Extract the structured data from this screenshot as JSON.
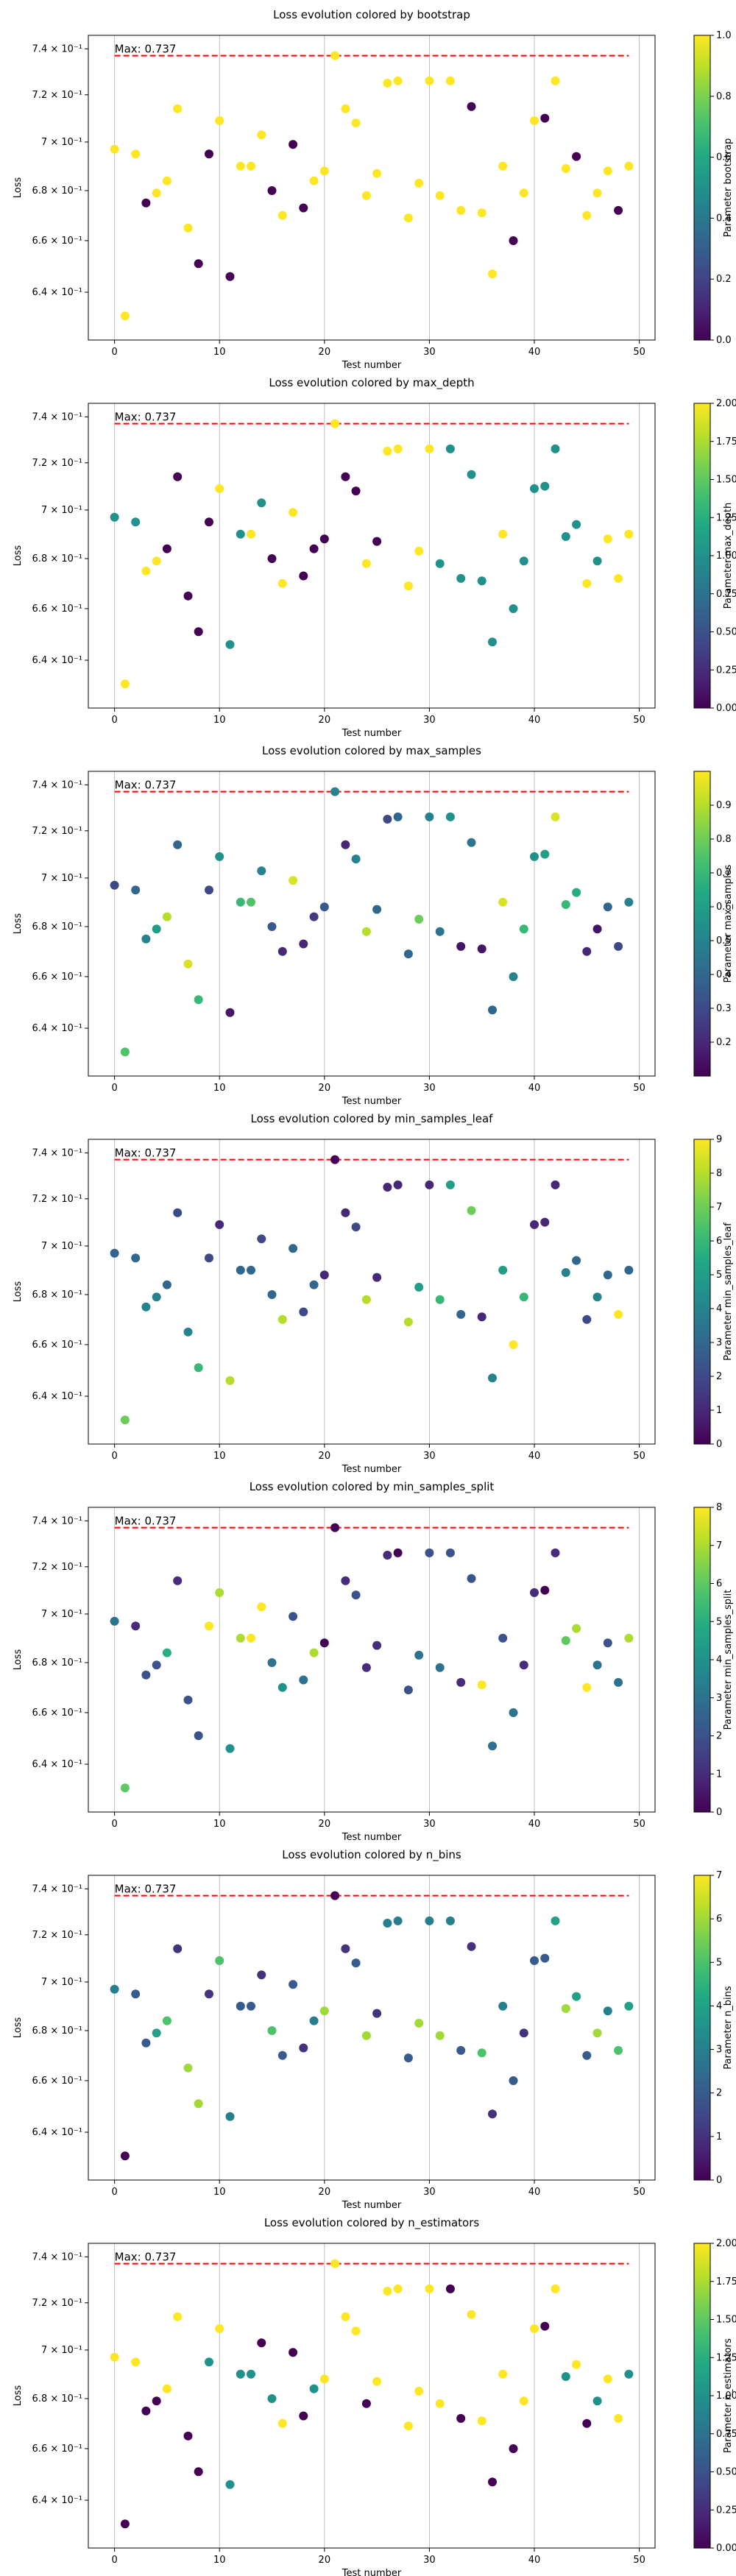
{
  "loss_values": [
    0.697,
    0.631,
    0.695,
    0.675,
    0.679,
    0.684,
    0.714,
    0.665,
    0.651,
    0.695,
    0.709,
    0.646,
    0.69,
    0.69,
    0.703,
    0.68,
    0.67,
    0.699,
    0.673,
    0.684,
    0.688,
    0.737,
    0.714,
    0.708,
    0.678,
    0.687,
    0.725,
    0.726,
    0.669,
    0.683,
    0.726,
    0.678,
    0.726,
    0.672,
    0.715,
    0.671,
    0.647,
    0.69,
    0.66,
    0.679,
    0.709,
    0.71,
    0.726,
    0.689,
    0.694,
    0.67,
    0.679,
    0.688,
    0.672,
    0.69
  ],
  "annotation": "Max: 0.737",
  "max_value": 0.737,
  "colormap": "viridis",
  "chart_data": [
    {
      "type": "scatter",
      "title": "Loss evolution colored by bootstrap",
      "xlabel": "Test number",
      "ylabel": "Loss",
      "colorbar_label": "Parameter bootstrap",
      "xlim": [
        -2.5,
        51.5
      ],
      "ylim": [
        0.622,
        0.746
      ],
      "log_y": true,
      "x_ticks": [
        0,
        10,
        20,
        30,
        40,
        50
      ],
      "y_ticks": [
        {
          "value": 0.64,
          "label": "6.4 × 10⁻¹"
        },
        {
          "value": 0.66,
          "label": "6.6 × 10⁻¹"
        },
        {
          "value": 0.68,
          "label": "6.8 × 10⁻¹"
        },
        {
          "value": 0.7,
          "label": "7 × 10⁻¹"
        },
        {
          "value": 0.72,
          "label": "7.2 × 10⁻¹"
        },
        {
          "value": 0.74,
          "label": "7.4 × 10⁻¹"
        }
      ],
      "color_range": [
        0.0,
        1.0
      ],
      "colorbar_ticks": [
        "0.0",
        "0.2",
        "0.4",
        "0.6",
        "0.8",
        "1.0"
      ],
      "colorbar_tick_values": [
        0.0,
        0.2,
        0.4,
        0.6,
        0.8,
        1.0
      ],
      "grid": "vertical",
      "param_values": [
        1,
        1,
        1,
        0,
        1,
        1,
        1,
        1,
        0,
        0,
        1,
        0,
        1,
        1,
        1,
        0,
        1,
        0,
        0,
        1,
        1,
        1,
        1,
        1,
        1,
        1,
        1,
        1,
        1,
        1,
        1,
        1,
        1,
        1,
        0,
        1,
        1,
        1,
        0,
        1,
        1,
        0,
        1,
        1,
        0,
        1,
        1,
        1,
        0,
        1
      ]
    },
    {
      "type": "scatter",
      "title": "Loss evolution colored by max_depth",
      "xlabel": "Test number",
      "ylabel": "Loss",
      "colorbar_label": "Parameter max_depth",
      "xlim": [
        -2.5,
        51.5
      ],
      "ylim": [
        0.622,
        0.746
      ],
      "log_y": true,
      "x_ticks": [
        0,
        10,
        20,
        30,
        40,
        50
      ],
      "y_ticks": [
        {
          "value": 0.64,
          "label": "6.4 × 10⁻¹"
        },
        {
          "value": 0.66,
          "label": "6.6 × 10⁻¹"
        },
        {
          "value": 0.68,
          "label": "6.8 × 10⁻¹"
        },
        {
          "value": 0.7,
          "label": "7 × 10⁻¹"
        },
        {
          "value": 0.72,
          "label": "7.2 × 10⁻¹"
        },
        {
          "value": 0.74,
          "label": "7.4 × 10⁻¹"
        }
      ],
      "color_range": [
        0.0,
        2.0
      ],
      "colorbar_ticks": [
        "0.00",
        "0.25",
        "0.50",
        "0.75",
        "1.00",
        "1.25",
        "1.50",
        "1.75",
        "2.00"
      ],
      "colorbar_tick_values": [
        0.0,
        0.25,
        0.5,
        0.75,
        1.0,
        1.25,
        1.5,
        1.75,
        2.0
      ],
      "grid": "vertical",
      "param_values": [
        1,
        2,
        1,
        2,
        2,
        0,
        0,
        0,
        0,
        0,
        2,
        1,
        1,
        2,
        1,
        0,
        2,
        2,
        0,
        0,
        0,
        2,
        0,
        0,
        2,
        0,
        2,
        2,
        2,
        2,
        2,
        1,
        1,
        1,
        1,
        1,
        1,
        2,
        1,
        1,
        1,
        1,
        1,
        1,
        1,
        2,
        1,
        2,
        2,
        2
      ]
    },
    {
      "type": "scatter",
      "title": "Loss evolution colored by max_samples",
      "xlabel": "Test number",
      "ylabel": "Loss",
      "colorbar_label": "Parameter max_samples",
      "xlim": [
        -2.5,
        51.5
      ],
      "ylim": [
        0.622,
        0.746
      ],
      "log_y": true,
      "x_ticks": [
        0,
        10,
        20,
        30,
        40,
        50
      ],
      "y_ticks": [
        {
          "value": 0.64,
          "label": "6.4 × 10⁻¹"
        },
        {
          "value": 0.66,
          "label": "6.6 × 10⁻¹"
        },
        {
          "value": 0.68,
          "label": "6.8 × 10⁻¹"
        },
        {
          "value": 0.7,
          "label": "7 × 10⁻¹"
        },
        {
          "value": 0.72,
          "label": "7.2 × 10⁻¹"
        },
        {
          "value": 0.74,
          "label": "7.4 × 10⁻¹"
        }
      ],
      "color_range": [
        0.1,
        1.0
      ],
      "colorbar_ticks": [
        "0.2",
        "0.3",
        "0.4",
        "0.5",
        "0.6",
        "0.7",
        "0.8",
        "0.9"
      ],
      "colorbar_tick_values": [
        0.2,
        0.3,
        0.4,
        0.5,
        0.6,
        0.7,
        0.8,
        0.9
      ],
      "grid": "vertical",
      "param_values": [
        0.3,
        0.75,
        0.4,
        0.5,
        0.6,
        0.9,
        0.4,
        0.95,
        0.7,
        0.3,
        0.55,
        0.15,
        0.7,
        0.75,
        0.5,
        0.35,
        0.2,
        0.95,
        0.2,
        0.25,
        0.35,
        0.5,
        0.2,
        0.5,
        0.9,
        0.4,
        0.3,
        0.4,
        0.4,
        0.8,
        0.5,
        0.45,
        0.55,
        0.15,
        0.45,
        0.15,
        0.4,
        0.95,
        0.5,
        0.7,
        0.55,
        0.6,
        0.95,
        0.7,
        0.65,
        0.2,
        0.15,
        0.4,
        0.3,
        0.5
      ]
    },
    {
      "type": "scatter",
      "title": "Loss evolution colored by min_samples_leaf",
      "xlabel": "Test number",
      "ylabel": "Loss",
      "colorbar_label": "Parameter min_samples_leaf",
      "xlim": [
        -2.5,
        51.5
      ],
      "ylim": [
        0.622,
        0.746
      ],
      "log_y": true,
      "x_ticks": [
        0,
        10,
        20,
        30,
        40,
        50
      ],
      "y_ticks": [
        {
          "value": 0.64,
          "label": "6.4 × 10⁻¹"
        },
        {
          "value": 0.66,
          "label": "6.6 × 10⁻¹"
        },
        {
          "value": 0.68,
          "label": "6.8 × 10⁻¹"
        },
        {
          "value": 0.7,
          "label": "7 × 10⁻¹"
        },
        {
          "value": 0.72,
          "label": "7.2 × 10⁻¹"
        },
        {
          "value": 0.74,
          "label": "7.4 × 10⁻¹"
        }
      ],
      "color_range": [
        0,
        9
      ],
      "colorbar_ticks": [
        "0",
        "1",
        "2",
        "3",
        "4",
        "5",
        "6",
        "7",
        "8",
        "9"
      ],
      "colorbar_tick_values": [
        0,
        1,
        2,
        3,
        4,
        5,
        6,
        7,
        8,
        9
      ],
      "grid": "vertical",
      "param_values": [
        3,
        7,
        3,
        4,
        4,
        3,
        2,
        4,
        6,
        2,
        1,
        8,
        3,
        3,
        2,
        3,
        8,
        3,
        2,
        3,
        1,
        0,
        1,
        2,
        8,
        1,
        1,
        1,
        8,
        5,
        1,
        6,
        5,
        3,
        7,
        1,
        4,
        5,
        9,
        6,
        1,
        1,
        1,
        4,
        3,
        2,
        4,
        3,
        9,
        3
      ]
    },
    {
      "type": "scatter",
      "title": "Loss evolution colored by min_samples_split",
      "xlabel": "Test number",
      "ylabel": "Loss",
      "colorbar_label": "Parameter min_samples_split",
      "xlim": [
        -2.5,
        51.5
      ],
      "ylim": [
        0.622,
        0.746
      ],
      "log_y": true,
      "x_ticks": [
        0,
        10,
        20,
        30,
        40,
        50
      ],
      "y_ticks": [
        {
          "value": 0.64,
          "label": "6.4 × 10⁻¹"
        },
        {
          "value": 0.66,
          "label": "6.6 × 10⁻¹"
        },
        {
          "value": 0.68,
          "label": "6.8 × 10⁻¹"
        },
        {
          "value": 0.7,
          "label": "7 × 10⁻¹"
        },
        {
          "value": 0.72,
          "label": "7.2 × 10⁻¹"
        },
        {
          "value": 0.74,
          "label": "7.4 × 10⁻¹"
        }
      ],
      "color_range": [
        0,
        8
      ],
      "colorbar_ticks": [
        "0",
        "1",
        "2",
        "3",
        "4",
        "5",
        "6",
        "7",
        "8"
      ],
      "colorbar_tick_values": [
        0,
        1,
        2,
        3,
        4,
        5,
        6,
        7,
        8
      ],
      "grid": "vertical",
      "param_values": [
        3,
        6,
        1,
        2,
        2,
        5,
        1,
        2,
        2,
        8,
        7,
        4,
        7,
        8,
        8,
        3,
        4,
        2,
        3,
        7,
        0,
        0,
        1,
        2,
        1,
        1,
        1,
        0,
        2,
        3,
        2,
        3,
        2,
        1,
        2,
        8,
        3,
        2,
        3,
        1,
        1,
        0,
        1,
        6,
        7,
        8,
        3,
        2,
        3,
        7
      ]
    },
    {
      "type": "scatter",
      "title": "Loss evolution colored by n_bins",
      "xlabel": "Test number",
      "ylabel": "Loss",
      "colorbar_label": "Parameter n_bins",
      "xlim": [
        -2.5,
        51.5
      ],
      "ylim": [
        0.622,
        0.746
      ],
      "log_y": true,
      "x_ticks": [
        0,
        10,
        20,
        30,
        40,
        50
      ],
      "y_ticks": [
        {
          "value": 0.64,
          "label": "6.4 × 10⁻¹"
        },
        {
          "value": 0.66,
          "label": "6.6 × 10⁻¹"
        },
        {
          "value": 0.68,
          "label": "6.8 × 10⁻¹"
        },
        {
          "value": 0.7,
          "label": "7 × 10⁻¹"
        },
        {
          "value": 0.72,
          "label": "7.2 × 10⁻¹"
        },
        {
          "value": 0.74,
          "label": "7.4 × 10⁻¹"
        }
      ],
      "color_range": [
        0,
        7
      ],
      "colorbar_ticks": [
        "0",
        "1",
        "2",
        "3",
        "4",
        "5",
        "6",
        "7"
      ],
      "colorbar_tick_values": [
        0,
        1,
        2,
        3,
        4,
        5,
        6,
        7
      ],
      "grid": "vertical",
      "param_values": [
        3,
        0,
        2,
        2,
        4,
        5,
        1,
        6,
        6,
        1,
        5,
        3,
        2,
        2,
        1,
        5,
        2,
        2,
        1,
        3,
        6,
        0,
        1,
        2,
        6,
        1,
        3,
        3,
        2,
        6,
        3,
        6,
        3,
        2,
        1,
        5,
        1,
        3,
        2,
        1,
        2,
        2,
        4,
        6,
        4,
        2,
        6,
        3,
        5,
        4
      ]
    },
    {
      "type": "scatter",
      "title": "Loss evolution colored by n_estimators",
      "xlabel": "Test number",
      "ylabel": "Loss",
      "colorbar_label": "Parameter n_estimators",
      "xlim": [
        -2.5,
        51.5
      ],
      "ylim": [
        0.622,
        0.746
      ],
      "log_y": true,
      "x_ticks": [
        0,
        10,
        20,
        30,
        40,
        50
      ],
      "y_ticks": [
        {
          "value": 0.64,
          "label": "6.4 × 10⁻¹"
        },
        {
          "value": 0.66,
          "label": "6.6 × 10⁻¹"
        },
        {
          "value": 0.68,
          "label": "6.8 × 10⁻¹"
        },
        {
          "value": 0.7,
          "label": "7 × 10⁻¹"
        },
        {
          "value": 0.72,
          "label": "7.2 × 10⁻¹"
        },
        {
          "value": 0.74,
          "label": "7.4 × 10⁻¹"
        }
      ],
      "color_range": [
        0.0,
        2.0
      ],
      "colorbar_ticks": [
        "0.00",
        "0.25",
        "0.50",
        "0.75",
        "1.00",
        "1.25",
        "1.50",
        "1.75",
        "2.00"
      ],
      "colorbar_tick_values": [
        0.0,
        0.25,
        0.5,
        0.75,
        1.0,
        1.25,
        1.5,
        1.75,
        2.0
      ],
      "grid": "vertical",
      "param_values": [
        2,
        0,
        2,
        0,
        0,
        2,
        2,
        0,
        0,
        1,
        2,
        1,
        1,
        1,
        0,
        1,
        2,
        0,
        0,
        1,
        2,
        2,
        2,
        2,
        0,
        2,
        2,
        2,
        2,
        2,
        2,
        2,
        0,
        0,
        2,
        2,
        0,
        2,
        0,
        2,
        2,
        0,
        2,
        1,
        2,
        0,
        1,
        2,
        2,
        1
      ]
    }
  ]
}
